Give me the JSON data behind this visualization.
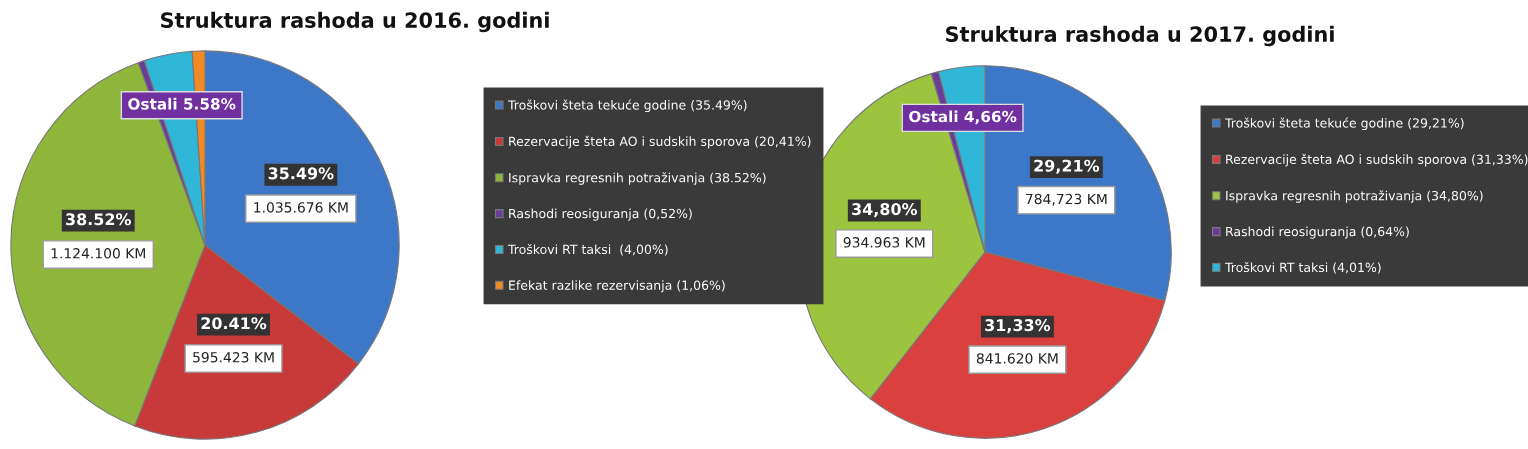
{
  "chart_data": [
    {
      "type": "pie",
      "title": "Struktura rashoda u 2016. godini",
      "categories": [
        "Troškovi šteta tekuće godine (35.49%)",
        "Rezervacije šteta AO i sudskih sporova (20,41%)",
        "Ispravka regresnih potraživanja (38.52%)",
        "Rashodi reosiguranja (0,52%)",
        "Troškovi RT taksi  (4,00%)",
        "Efekat razlike rezervisanja (1,06%)"
      ],
      "values": [
        35.49,
        20.41,
        38.52,
        0.52,
        4.0,
        1.06
      ],
      "colors": [
        "#3d78c8",
        "#c8393a",
        "#8db63a",
        "#6a3d9a",
        "#2fb6d8",
        "#f08a24"
      ],
      "value_labels": [
        "35.49%\n1.035.676 KM",
        "20.41%\n595.423 KM",
        "38.52%\n1.124.100 KM",
        null,
        null,
        null
      ],
      "annotations": [
        "Ostali 5.58%"
      ],
      "legend": "right"
    },
    {
      "type": "pie",
      "title": "Struktura rashoda u 2017. godini",
      "categories": [
        "Troškovi šteta tekuće godine (29,21%)",
        "Rezervacije šteta AO i sudskih sporova (31,33%)",
        "Ispravka regresnih potraživanja (34,80%)",
        "Rashodi reosiguranja (0,64%)",
        "Troškovi RT taksi (4,01%)"
      ],
      "values": [
        29.21,
        31.33,
        34.8,
        0.64,
        4.01
      ],
      "colors": [
        "#3d78c8",
        "#d9403e",
        "#9cc43f",
        "#6a3d9a",
        "#2fb6d8"
      ],
      "value_labels": [
        "29,21%\n784,723 KM",
        "31,33%\n841.620 KM",
        "34,80%\n934.963 KM",
        null,
        null
      ],
      "annotations": [
        "Ostali 4,66%"
      ],
      "legend": "right"
    }
  ]
}
